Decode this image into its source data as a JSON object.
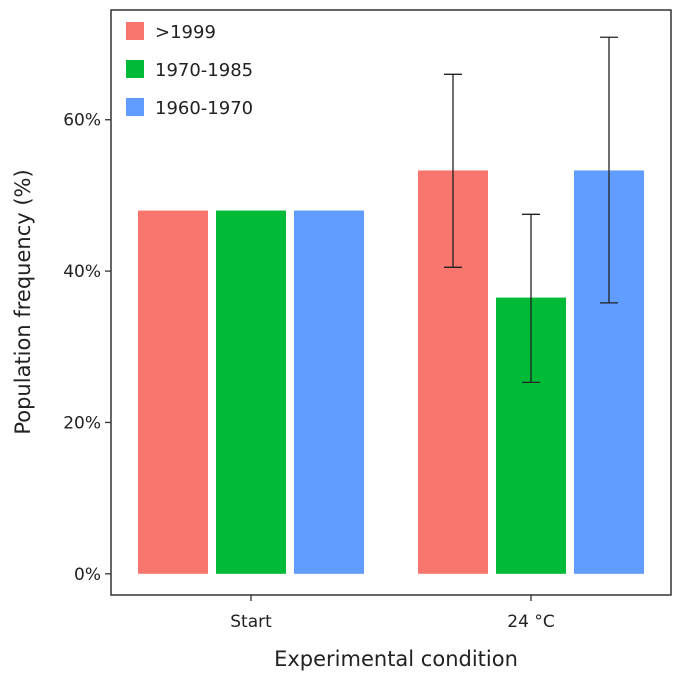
{
  "chart_data": {
    "type": "bar",
    "title": "",
    "xlabel": "Experimental condition",
    "ylabel": "Population frequency (%)",
    "categories": [
      "Start",
      "24 °C"
    ],
    "ylim": [
      -0.028,
      0.745
    ],
    "yticks": [
      0,
      0.2,
      0.4,
      0.6
    ],
    "ytick_labels": [
      "0%",
      "20%",
      "40%",
      "60%"
    ],
    "grid": false,
    "legend_position": "top-left",
    "series": [
      {
        "name": ">1999",
        "color": "#F8766D",
        "values": [
          0.48,
          0.533
        ],
        "error_low": [
          null,
          0.405
        ],
        "error_high": [
          null,
          0.66
        ]
      },
      {
        "name": "1970-1985",
        "color": "#00BA38",
        "values": [
          0.48,
          0.365
        ],
        "error_low": [
          null,
          0.253
        ],
        "error_high": [
          null,
          0.475
        ]
      },
      {
        "name": "1960-1970",
        "color": "#619CFF",
        "values": [
          0.48,
          0.533
        ],
        "error_low": [
          null,
          0.358
        ],
        "error_high": [
          null,
          0.709
        ]
      }
    ]
  }
}
